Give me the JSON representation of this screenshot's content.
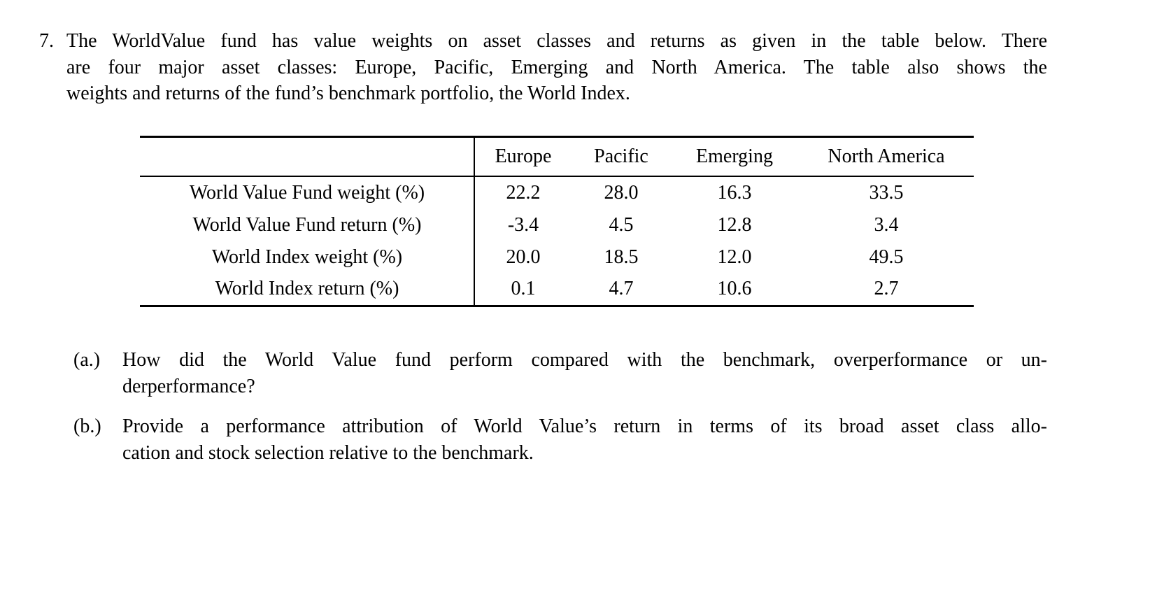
{
  "colors": {
    "background": "#ffffff",
    "text": "#000000",
    "rule": "#000000"
  },
  "problem": {
    "number": "7.",
    "intro_lines": [
      "The WorldValue fund has value weights on asset classes and returns as given in the table below. There",
      "are four major asset classes: Europe, Pacific, Emerging and North America. The table also shows the",
      "weights and returns of the fund’s benchmark portfolio, the World Index."
    ]
  },
  "table": {
    "column_headers": [
      "Europe",
      "Pacific",
      "Emerging",
      "North America"
    ],
    "rows": [
      {
        "label": "World Value Fund weight (%)",
        "values": [
          "22.2",
          "28.0",
          "16.3",
          "33.5"
        ]
      },
      {
        "label": "World Value Fund return (%)",
        "values": [
          "-3.4",
          "4.5",
          "12.8",
          "3.4"
        ]
      },
      {
        "label": "World Index weight (%)",
        "values": [
          "20.0",
          "18.5",
          "12.0",
          "49.5"
        ]
      },
      {
        "label": "World Index return (%)",
        "values": [
          "0.1",
          "4.7",
          "10.6",
          "2.7"
        ]
      }
    ]
  },
  "questions": [
    {
      "marker": "(a.)",
      "lines": [
        "How did the World Value fund perform compared with the benchmark, overperformance or un-",
        "derperformance?"
      ]
    },
    {
      "marker": "(b.)",
      "lines": [
        "Provide a performance attribution of World Value’s return in terms of its broad asset class allo-",
        "cation and stock selection relative to the benchmark."
      ]
    }
  ]
}
